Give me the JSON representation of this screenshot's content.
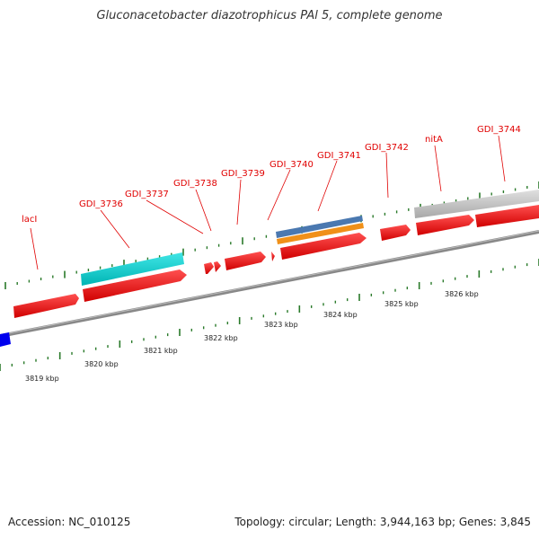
{
  "title": "Gluconacetobacter diazotrophicus PAl 5, complete genome",
  "footer": {
    "accession": "Accession: NC_010125",
    "summary": "Topology: circular; Length: 3,944,163 bp; Genes: 3,845"
  },
  "colors": {
    "gene_red": "#ee0000",
    "cyan_feature": "#00c8c8",
    "blue_feature": "#4a78b0",
    "orange_feature": "#f09018",
    "gray_feature": "#c0c0c0",
    "tick_green": "#2a7a2a",
    "label_red": "#e00000"
  },
  "gene_labels": [
    {
      "id": "lacI",
      "text": "lacI"
    },
    {
      "id": "gdi_3736",
      "text": "GDI_3736"
    },
    {
      "id": "gdi_3737",
      "text": "GDI_3737"
    },
    {
      "id": "gdi_3738",
      "text": "GDI_3738"
    },
    {
      "id": "gdi_3739",
      "text": "GDI_3739"
    },
    {
      "id": "gdi_3740",
      "text": "GDI_3740"
    },
    {
      "id": "gdi_3741",
      "text": "GDI_3741"
    },
    {
      "id": "gdi_3742",
      "text": "GDI_3742"
    },
    {
      "id": "nitA",
      "text": "nitA"
    },
    {
      "id": "gdi_3744",
      "text": "GDI_3744"
    }
  ],
  "kbp_labels": [
    {
      "id": "k3819",
      "text": "3819 kbp"
    },
    {
      "id": "k3820",
      "text": "3820 kbp"
    },
    {
      "id": "k3821",
      "text": "3821 kbp"
    },
    {
      "id": "k3822",
      "text": "3822 kbp"
    },
    {
      "id": "k3823",
      "text": "3823 kbp"
    },
    {
      "id": "k3824",
      "text": "3824 kbp"
    },
    {
      "id": "k3825",
      "text": "3825 kbp"
    },
    {
      "id": "k3826",
      "text": "3826 kbp"
    }
  ]
}
